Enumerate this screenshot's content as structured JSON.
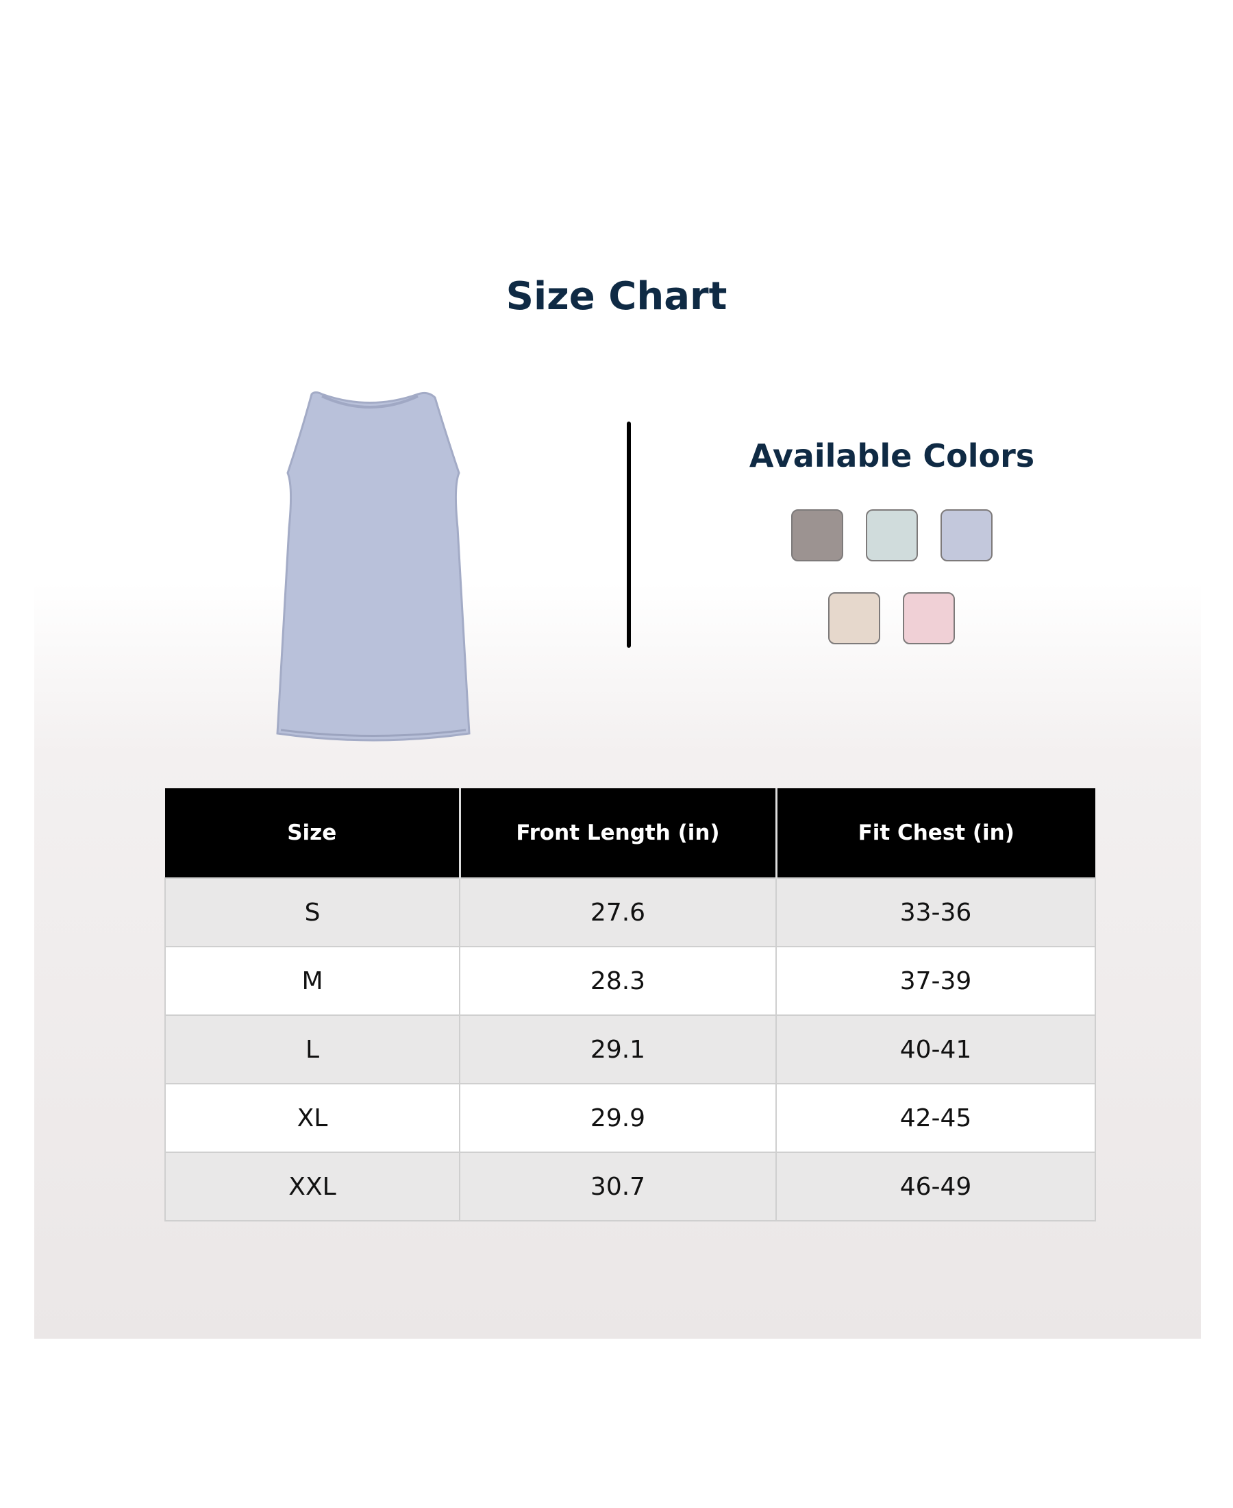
{
  "title": "Size Chart",
  "available_colors": {
    "title": "Available Colors",
    "swatches": [
      "#9c9391",
      "#d0dcdc",
      "#c3c8dc",
      "#e6d8cc",
      "#f0d0d6"
    ]
  },
  "product_image": {
    "color": "#b9c1da"
  },
  "table": {
    "headers": [
      "Size",
      "Front Length (in)",
      "Fit Chest (in)"
    ],
    "rows": [
      [
        "S",
        "27.6",
        "33-36"
      ],
      [
        "M",
        "28.3",
        "37-39"
      ],
      [
        "L",
        "29.1",
        "40-41"
      ],
      [
        "XL",
        "29.9",
        "42-45"
      ],
      [
        "XXL",
        "30.7",
        "46-49"
      ]
    ]
  }
}
